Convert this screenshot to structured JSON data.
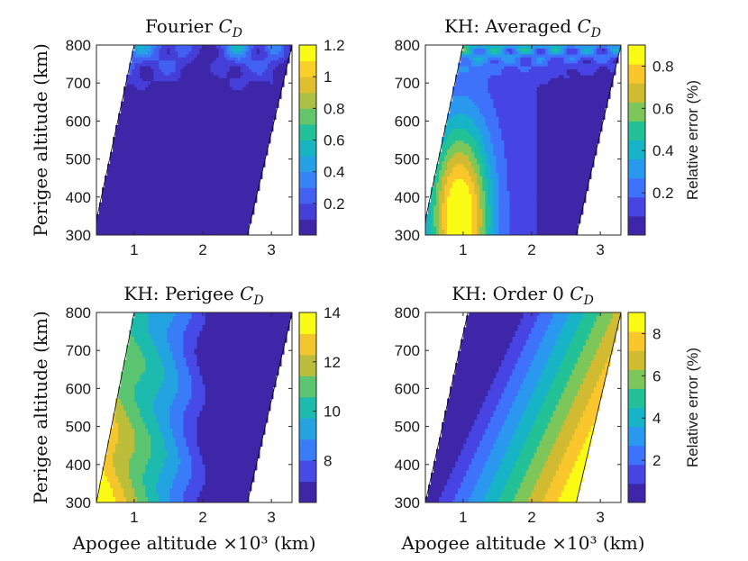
{
  "figure": {
    "xlabel": "Apogee altitude ×10³ (km)",
    "ylabel": "Perigee altitude (km)"
  },
  "colormap": [
    "#3e26a8",
    "#4744e4",
    "#3e72fb",
    "#2a98ef",
    "#16b4c6",
    "#23c296",
    "#7dc65a",
    "#d1bb31",
    "#f9c72c",
    "#f9fb14"
  ],
  "chart_data": [
    {
      "id": "fourier",
      "type": "contour",
      "title": "Fourier C_D",
      "title_plain": "Fourier ",
      "title_symbol": "C",
      "title_sub": "D",
      "xlim": [
        0.45,
        3.3
      ],
      "ylim": [
        300,
        800
      ],
      "xticks": [
        "1",
        "2",
        "3"
      ],
      "xtick_values": [
        1,
        2,
        3
      ],
      "yticks": [
        "300",
        "400",
        "500",
        "600",
        "700",
        "800"
      ],
      "ytick_values": [
        300,
        400,
        500,
        600,
        700,
        800
      ],
      "colorbar": {
        "min": 0.0,
        "max": 1.2,
        "ticks": [
          "0.2",
          "0.4",
          "0.6",
          "0.8",
          "1",
          "1.2"
        ],
        "tick_values": [
          0.2,
          0.4,
          0.6,
          0.8,
          1.0,
          1.2
        ],
        "label": ""
      },
      "pattern": "fourier",
      "levels": 12
    },
    {
      "id": "kh-averaged",
      "type": "contour",
      "title": "KH: Averaged C_D",
      "title_plain": "KH: Averaged ",
      "title_symbol": "C",
      "title_sub": "D",
      "xlim": [
        0.45,
        3.3
      ],
      "ylim": [
        300,
        800
      ],
      "xticks": [
        "1",
        "2",
        "3"
      ],
      "xtick_values": [
        1,
        2,
        3
      ],
      "yticks": [
        "300",
        "400",
        "500",
        "600",
        "700",
        "800"
      ],
      "ytick_values": [
        300,
        400,
        500,
        600,
        700,
        800
      ],
      "colorbar": {
        "min": 0.0,
        "max": 0.9,
        "ticks": [
          "0.2",
          "0.4",
          "0.6",
          "0.8"
        ],
        "tick_values": [
          0.2,
          0.4,
          0.6,
          0.8
        ],
        "label": "Relative error (%)"
      },
      "pattern": "averaged",
      "levels": 10
    },
    {
      "id": "kh-perigee",
      "type": "contour",
      "title": "KH: Perigee C_D",
      "title_plain": "KH: Perigee ",
      "title_symbol": "C",
      "title_sub": "D",
      "xlim": [
        0.45,
        3.3
      ],
      "ylim": [
        300,
        800
      ],
      "xticks": [
        "1",
        "2",
        "3"
      ],
      "xtick_values": [
        1,
        2,
        3
      ],
      "yticks": [
        "300",
        "400",
        "500",
        "600",
        "700",
        "800"
      ],
      "ytick_values": [
        300,
        400,
        500,
        600,
        700,
        800
      ],
      "colorbar": {
        "min": 6.3,
        "max": 14.0,
        "ticks": [
          "8",
          "10",
          "12",
          "14"
        ],
        "tick_values": [
          8,
          10,
          12,
          14
        ],
        "label": ""
      },
      "pattern": "perigee",
      "levels": 9
    },
    {
      "id": "kh-order0",
      "type": "contour",
      "title": "KH: Order 0 C_D",
      "title_plain": "KH: Order 0 ",
      "title_symbol": "C",
      "title_sub": "D",
      "xlim": [
        0.45,
        3.3
      ],
      "ylim": [
        300,
        800
      ],
      "xticks": [
        "1",
        "2",
        "3"
      ],
      "xtick_values": [
        1,
        2,
        3
      ],
      "yticks": [
        "300",
        "400",
        "500",
        "600",
        "700",
        "800"
      ],
      "ytick_values": [
        300,
        400,
        500,
        600,
        700,
        800
      ],
      "colorbar": {
        "min": 0.0,
        "max": 9.0,
        "ticks": [
          "2",
          "4",
          "6",
          "8"
        ],
        "tick_values": [
          2,
          4,
          6,
          8
        ],
        "label": "Relative error (%)"
      },
      "pattern": "order0",
      "levels": 10
    }
  ]
}
